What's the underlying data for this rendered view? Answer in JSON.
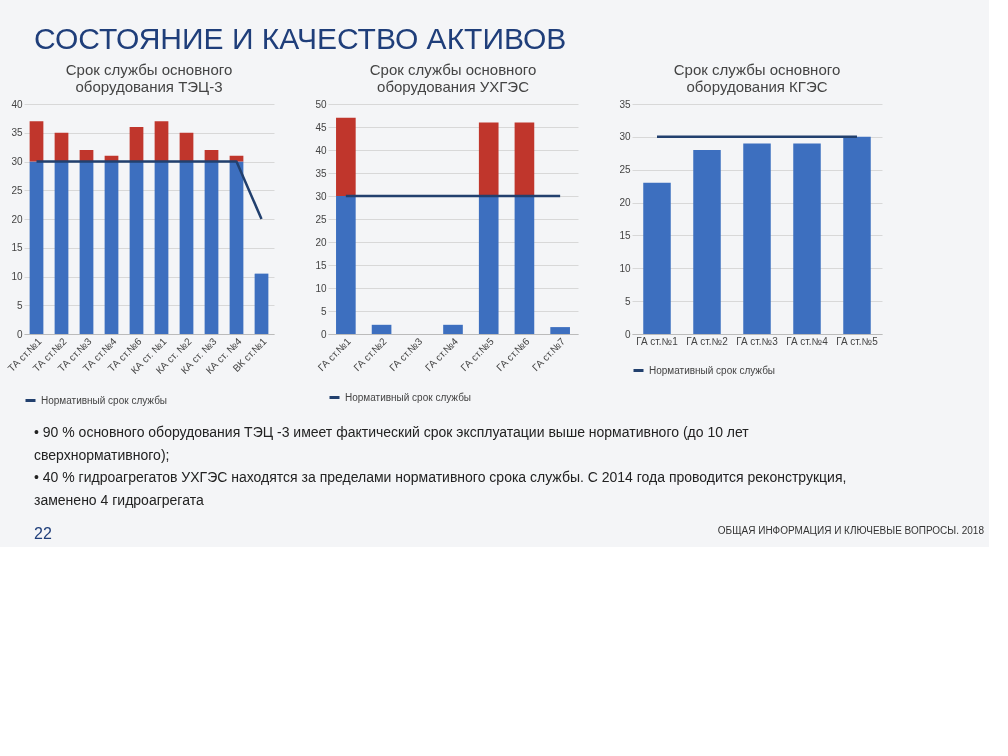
{
  "chart_data": [
    {
      "type": "bar",
      "title": "Срок службы основного оборудования ТЭЦ-3",
      "stacked": true,
      "categories": [
        "ТА ст.№1",
        "ТА ст.№2",
        "ТА ст.№3",
        "ТА ст.№4",
        "ТА ст.№6",
        "КА ст. №1",
        "КА ст. №2",
        "КА ст. №3",
        "КА ст. №4",
        "ВК ст.№1"
      ],
      "series": [
        {
          "color": "#3d6fbf",
          "values": [
            30,
            30,
            30,
            30,
            30,
            30,
            30,
            30,
            30,
            10.5
          ]
        },
        {
          "color": "#c0362c",
          "values": [
            7,
            5,
            2,
            1,
            6,
            7,
            5,
            2,
            1,
            null
          ]
        },
        {
          "name": "Нормативный срок службы",
          "type": "line",
          "color": "#22406e",
          "values": [
            30,
            30,
            30,
            30,
            30,
            30,
            30,
            30,
            30,
            20
          ]
        }
      ],
      "ylim": [
        0,
        40
      ],
      "yticks": [
        0,
        5,
        10,
        15,
        20,
        25,
        30,
        35,
        40
      ],
      "grid": "y",
      "legend": "bottom",
      "annotations": [
        "СОСТОЯНИЕ И КАЧЕСТВО АКТИВОВ",
        "• 90 % основного оборудования ТЭЦ -3 имеет фактический срок эксплуатации выше нормативного (до 10 лет сверхнормативного);",
        "• 40 % гидроагрегатов УХГЭС находятся за пределами нормативного срока службы. С 2014 года проводится реконструкция, заменено 4 гидроагрегата",
        "ОБЩАЯ ИНФОРМАЦИЯ И КЛЮЧЕВЫЕ ВОПРОСЫ. 2018",
        "22"
      ]
    },
    {
      "type": "bar",
      "title": "Срок службы основного оборудования УХГЭС",
      "stacked": true,
      "categories": [
        "ГА ст.№1",
        "ГА ст.№2",
        "ГА ст.№3",
        "ГА ст.№4",
        "ГА ст.№5",
        "ГА ст.№6",
        "ГА ст.№7"
      ],
      "series": [
        {
          "color": "#3d6fbf",
          "values": [
            30,
            2,
            null,
            2,
            30,
            30,
            1.5
          ]
        },
        {
          "color": "#c0362c",
          "values": [
            17,
            null,
            null,
            null,
            16,
            16,
            null
          ]
        },
        {
          "name": "Нормативный срок службы",
          "type": "line",
          "color": "#22406e",
          "values": [
            30,
            30,
            30,
            30,
            30,
            30,
            30
          ]
        }
      ],
      "ylim": [
        0,
        50
      ],
      "yticks": [
        0,
        5,
        10,
        15,
        20,
        25,
        30,
        35,
        40,
        45,
        50
      ],
      "grid": "y",
      "legend": "bottom"
    },
    {
      "type": "bar",
      "title": "Срок службы основного оборудования КГЭС",
      "categories": [
        "ГА ст.№1",
        "ГА ст.№2",
        "ГА ст.№3",
        "ГА ст.№4",
        "ГА ст.№5"
      ],
      "series": [
        {
          "color": "#3d6fbf",
          "values": [
            23,
            28,
            29,
            29,
            30
          ]
        },
        {
          "name": "Нормативный срок службы",
          "type": "line",
          "color": "#22406e",
          "values": [
            30,
            30,
            30,
            30,
            30
          ]
        }
      ],
      "ylim": [
        0,
        35
      ],
      "yticks": [
        0,
        5,
        10,
        15,
        20,
        25,
        30,
        35
      ],
      "grid": "y",
      "legend": "bottom"
    }
  ]
}
